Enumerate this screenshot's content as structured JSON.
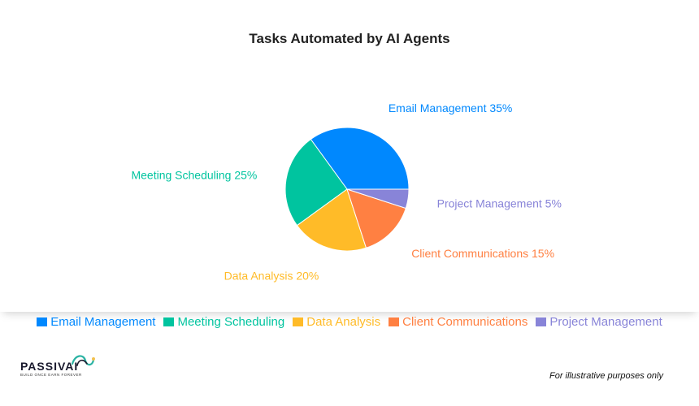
{
  "chart_data": {
    "type": "pie",
    "title": "Tasks Automated by AI Agents",
    "slices": [
      {
        "label": "Email Management",
        "value": 35,
        "color": "#0088fe",
        "text": "Email Management 35%"
      },
      {
        "label": "Meeting Scheduling",
        "value": 25,
        "color": "#00c49f",
        "text": "Meeting Scheduling 25%"
      },
      {
        "label": "Data Analysis",
        "value": 20,
        "color": "#ffbb28",
        "text": "Data Analysis 20%"
      },
      {
        "label": "Client Communications",
        "value": 15,
        "color": "#ff8042",
        "text": "Client Communications 15%"
      },
      {
        "label": "Project Management",
        "value": 5,
        "color": "#8884d8",
        "text": "Project Management 5%"
      }
    ],
    "legend_position": "bottom"
  },
  "branding": {
    "logo_text": "PASSIVAI",
    "logo_tagline": "BUILD ONCE EARN FOREVER",
    "disclaimer": "For illustrative purposes only"
  }
}
